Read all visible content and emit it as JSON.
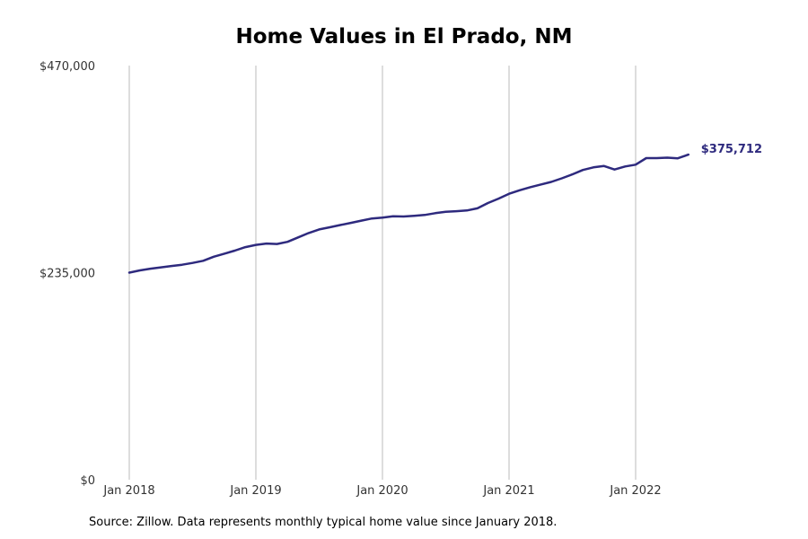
{
  "chart_data": {
    "type": "line",
    "title": "Home Values in El Prado, NM",
    "xlabel": "",
    "ylabel": "",
    "ylim": [
      0,
      470000
    ],
    "y_ticks": [
      {
        "value": 0,
        "label": "$0"
      },
      {
        "value": 235000,
        "label": "$235,000"
      },
      {
        "value": 470000,
        "label": "$470,000"
      }
    ],
    "x_ticks": [
      {
        "date": "2018-01",
        "label": "Jan 2018"
      },
      {
        "date": "2019-01",
        "label": "Jan 2019"
      },
      {
        "date": "2020-01",
        "label": "Jan 2020"
      },
      {
        "date": "2021-01",
        "label": "Jan 2021"
      },
      {
        "date": "2022-01",
        "label": "Jan 2022"
      }
    ],
    "x_range": [
      "2018-01",
      "2023-01"
    ],
    "grid": {
      "vertical": true,
      "horizontal": false
    },
    "line_color": "#2e2a7e",
    "series": [
      {
        "x": [
          "2018-01",
          "2018-02",
          "2018-03",
          "2018-04",
          "2018-05",
          "2018-06",
          "2018-07",
          "2018-08",
          "2018-09",
          "2018-10",
          "2018-11",
          "2018-12",
          "2019-01",
          "2019-02",
          "2019-03",
          "2019-04",
          "2019-05",
          "2019-06",
          "2019-07",
          "2019-08",
          "2019-09",
          "2019-10",
          "2019-11",
          "2019-12",
          "2020-01",
          "2020-02",
          "2020-03",
          "2020-04",
          "2020-05",
          "2020-06",
          "2020-07",
          "2020-08",
          "2020-09",
          "2020-10",
          "2020-11",
          "2020-12",
          "2021-01",
          "2021-02",
          "2021-03",
          "2021-04",
          "2021-05",
          "2021-06",
          "2021-07",
          "2021-08",
          "2021-09",
          "2021-10",
          "2021-11",
          "2021-12",
          "2022-01",
          "2022-02",
          "2022-03",
          "2022-04",
          "2022-05",
          "2022-06"
        ],
        "values": [
          235000,
          237500,
          239500,
          241000,
          242500,
          244000,
          246000,
          248500,
          253000,
          256500,
          260000,
          264000,
          266500,
          268000,
          267500,
          270000,
          275000,
          280000,
          284000,
          286500,
          289000,
          291500,
          294000,
          296500,
          297500,
          299000,
          298700,
          299500,
          300500,
          302500,
          304000,
          304700,
          305500,
          308000,
          314000,
          319000,
          324500,
          328500,
          332000,
          335000,
          338000,
          342000,
          346500,
          351500,
          354500,
          356000,
          352000,
          355500,
          357500,
          365000,
          365000,
          365500,
          364800,
          369000
        ]
      }
    ],
    "end_label": "$375,712",
    "source": "Source: Zillow. Data represents monthly typical home value since January 2018."
  }
}
